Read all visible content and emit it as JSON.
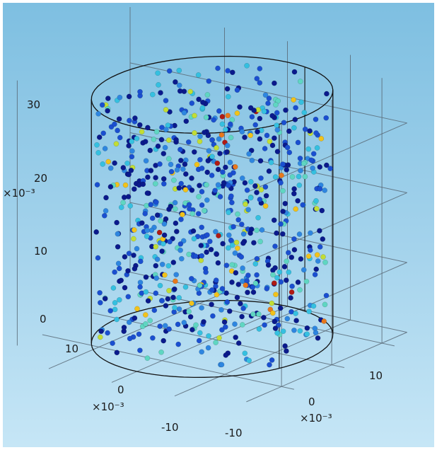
{
  "chart_data": {
    "type": "scatter",
    "dimension": "3d",
    "title": "",
    "axes": {
      "z": {
        "range": [
          0,
          35
        ],
        "ticks": [
          "0",
          "10",
          "20",
          "30"
        ],
        "multiplier": "×10⁻³"
      },
      "x": {
        "range": [
          -15,
          15
        ],
        "ticks": [
          "-10",
          "0",
          "10"
        ],
        "multiplier": "×10⁻³"
      },
      "y": {
        "range": [
          -15,
          15
        ],
        "ticks": [
          "-10",
          "0",
          "10"
        ],
        "multiplier": "×10⁻³"
      }
    },
    "geometry_outline": {
      "shape": "cylinder",
      "radius": 15,
      "z_range": [
        0,
        35
      ]
    },
    "grid": true,
    "legend": "none",
    "colormap": [
      "#0a1a8c",
      "#1a4fd0",
      "#2e86e0",
      "#35c0e0",
      "#5fd6c2",
      "#c2dd35",
      "#f2c21a",
      "#e8781c",
      "#b01a14"
    ],
    "approximate_point_count": 800,
    "points_note_values_estimated": true,
    "background_colors": [
      "#7ebfe1",
      "#c6e6f6"
    ]
  }
}
